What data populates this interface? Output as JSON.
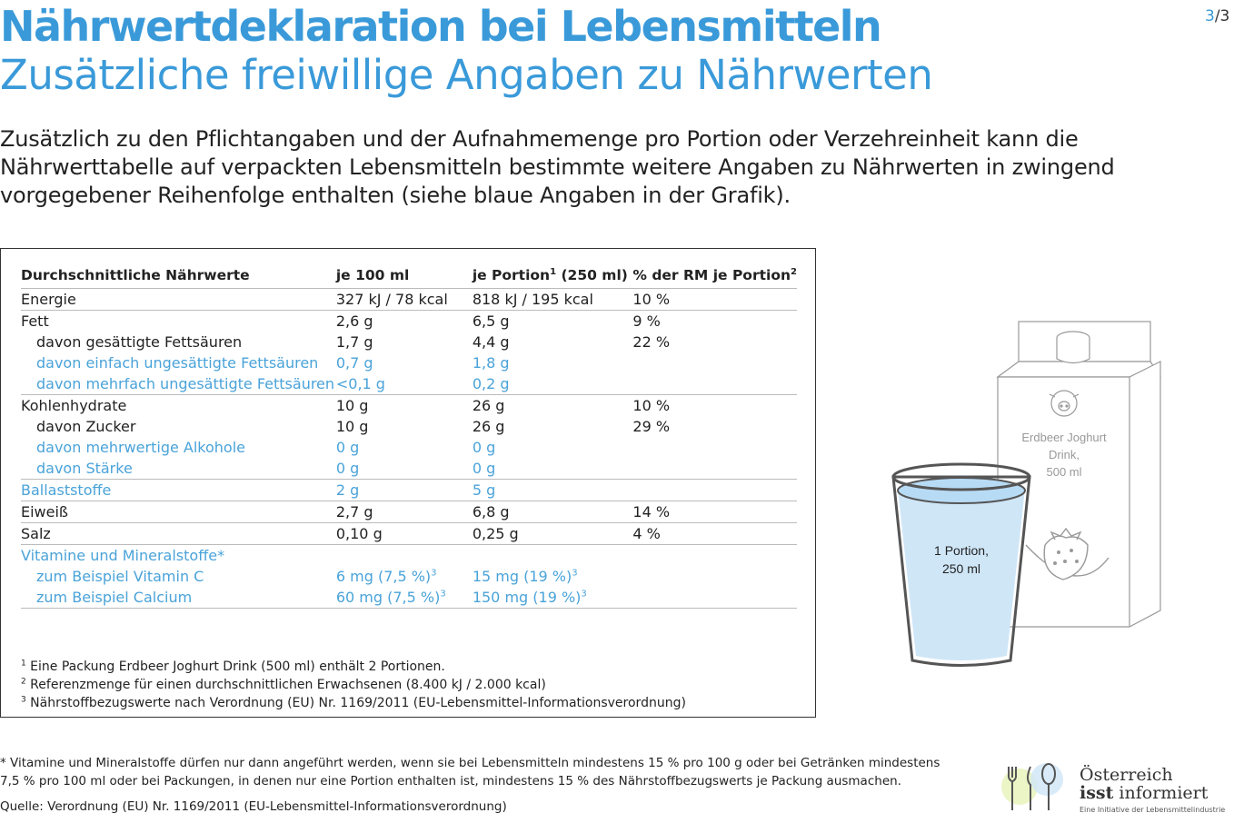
{
  "page_indicator": {
    "current": "3",
    "total": "/3"
  },
  "title": "Nährwertdeklaration bei Lebensmitteln",
  "subtitle": "Zusätzliche freiwillige Angaben zu Nährwerten",
  "intro": "Zusätzlich zu den Pflichtangaben und der Aufnahmemenge pro Portion oder Verzehreinheit kann die Nährwerttabelle auf verpackten Lebensmitteln bestimmte weitere Angaben zu Nährwerten in zwingend vorgegebener Reihenfolge enthalten (siehe blaue Angaben in der Grafik).",
  "table": {
    "headers": {
      "c1": "Durchschnittliche Nährwerte",
      "c2": "je 100 ml",
      "c3": "je Portion",
      "c3_sup": "1",
      "c3_tail": " (250 ml)",
      "c4": "% der RM je Portion",
      "c4_sup": "2"
    },
    "rows": {
      "energie": [
        "Energie",
        "327 kJ / 78 kcal",
        "818 kJ / 195 kcal",
        "10 %"
      ],
      "fett": [
        "Fett",
        "2,6 g",
        "6,5 g",
        "9 %"
      ],
      "ges_fett": [
        "davon gesättigte Fettsäuren",
        "1,7 g",
        "4,4 g",
        "22 %"
      ],
      "einfach": [
        "davon einfach ungesättigte Fettsäuren",
        "0,7 g",
        "1,8 g",
        ""
      ],
      "mehrfach": [
        "davon mehrfach ungesättigte Fettsäuren",
        "<0,1 g",
        "0,2 g",
        ""
      ],
      "kh": [
        "Kohlenhydrate",
        "10 g",
        "26 g",
        "10 %"
      ],
      "zucker": [
        "davon Zucker",
        "10 g",
        "26 g",
        "29 %"
      ],
      "alkohole": [
        "davon mehrwertige Alkohole",
        "0 g",
        "0 g",
        ""
      ],
      "staerke": [
        "davon Stärke",
        "0 g",
        "0 g",
        ""
      ],
      "ballast": [
        "Ballaststoffe",
        "2 g",
        "5 g",
        ""
      ],
      "eiweiss": [
        "Eiweiß",
        "2,7 g",
        "6,8 g",
        "14 %"
      ],
      "salz": [
        "Salz",
        "0,10 g",
        "0,25 g",
        "4 %"
      ],
      "vitamine": [
        "Vitamine und Mineralstoffe*",
        "",
        "",
        ""
      ],
      "vitc": [
        "zum Beispiel Vitamin C",
        "6 mg (7,5 %)",
        "15 mg (19 %)",
        ""
      ],
      "calcium": [
        "zum Beispiel Calcium",
        "60 mg (7,5 %)",
        "150 mg (19 %)",
        ""
      ]
    },
    "sup3": "3"
  },
  "footnotes": [
    {
      "mark": "1",
      "text": " Eine Packung Erdbeer Joghurt Drink (500 ml) enthält 2 Portionen."
    },
    {
      "mark": "2",
      "text": " Referenzmenge für einen durchschnittlichen Erwachsenen (8.400 kJ / 2.000 kcal)"
    },
    {
      "mark": "3",
      "text": " Nährstoffbezugswerte nach Verordnung (EU) Nr. 1169/2011 (EU-Lebensmittel-Informationsverordnung)"
    }
  ],
  "illustration": {
    "carton_label_1": "Erdbeer Joghurt",
    "carton_label_2": "Drink,",
    "carton_label_3": "500 ml",
    "glass_label_1": "1 Portion,",
    "glass_label_2": "250 ml",
    "water_color": "#cfe6f7",
    "outline_color": "#555555"
  },
  "bottom_note": "* Vitamine und Mineralstoffe dürfen nur dann angeführt werden, wenn sie bei Lebensmitteln mindestens 15 % pro 100 g oder bei Getränken mindestens 7,5 % pro 100 ml oder bei Packungen, in denen nur eine Portion enthalten ist, mindestens 15 % des Nährstoffbezugswerts je Packung ausmachen.",
  "source": "Quelle: Verordnung (EU) Nr. 1169/2011 (EU-Lebensmittel-Informationsverordnung)",
  "logo": {
    "line1": "Österreich",
    "line2_bold": "isst",
    "line2_rest": " informiert",
    "line3": "Eine Initiative der Lebensmittelindustrie",
    "icon": "fork-knife-spoon-icon"
  },
  "colors": {
    "accent": "#3a9ad9",
    "optional_values": "#4aa3d9"
  }
}
